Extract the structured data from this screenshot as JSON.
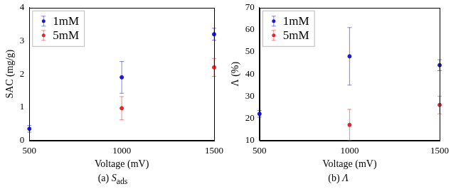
{
  "chart_data": [
    {
      "type": "scatter",
      "x_label": "Voltage (mV)",
      "y_label": "SAC (mg/g)",
      "caption": {
        "label": "(a)",
        "symbol": "S",
        "subscript": "ads"
      },
      "xlim": [
        500,
        1500
      ],
      "xticks": [
        500,
        1000,
        1500
      ],
      "ylim": [
        0,
        4
      ],
      "yticks": [
        0,
        1,
        2,
        3,
        4
      ],
      "grid": false,
      "legend": "upper left",
      "marker": "circle",
      "series": [
        {
          "name": "1mM",
          "color": "#1a1adb",
          "x": [
            500,
            1000,
            1500
          ],
          "values": [
            0.35,
            1.9,
            3.2
          ],
          "errors": [
            0.1,
            0.48,
            0.18
          ]
        },
        {
          "name": "5mM",
          "color": "#e8262a",
          "x": [
            1000,
            1500
          ],
          "values": [
            0.97,
            2.2
          ],
          "errors": [
            0.35,
            0.27
          ]
        }
      ]
    },
    {
      "type": "scatter",
      "x_label": "Voltage (mV)",
      "y_label": "Λ (%)",
      "caption": {
        "label": "(b)",
        "symbol": "Λ",
        "subscript": ""
      },
      "xlim": [
        500,
        1500
      ],
      "xticks": [
        500,
        1000,
        1500
      ],
      "ylim": [
        10,
        70
      ],
      "yticks": [
        10,
        20,
        30,
        40,
        50,
        60,
        70
      ],
      "grid": false,
      "legend": "upper left",
      "marker": "circle",
      "series": [
        {
          "name": "1mM",
          "color": "#1a1adb",
          "x": [
            500,
            1000,
            1500
          ],
          "values": [
            22,
            48,
            44
          ],
          "errors": [
            1.5,
            13,
            2.5
          ]
        },
        {
          "name": "5mM",
          "color": "#e8262a",
          "x": [
            1000,
            1500
          ],
          "values": [
            17,
            26
          ],
          "errors": [
            7,
            4
          ]
        }
      ]
    }
  ]
}
